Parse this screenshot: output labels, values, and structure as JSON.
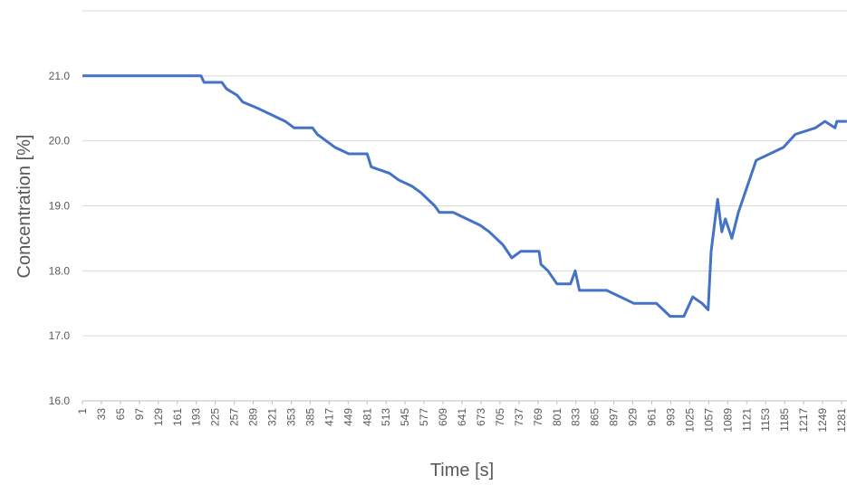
{
  "chart_data": {
    "type": "line",
    "x_label": "Time [s]",
    "y_label": "Concentration [%]",
    "x": [
      1,
      201,
      206,
      236,
      244,
      262,
      271,
      297,
      320,
      343,
      358,
      389,
      397,
      412,
      427,
      450,
      481,
      488,
      519,
      534,
      557,
      572,
      595,
      603,
      626,
      649,
      672,
      687,
      710,
      725,
      740,
      771,
      774,
      786,
      801,
      824,
      832,
      839,
      885,
      931,
      969,
      992,
      1015,
      1030,
      1046,
      1056,
      1061,
      1072,
      1079,
      1085,
      1096,
      1107,
      1122,
      1137,
      1160,
      1183,
      1203,
      1237,
      1253,
      1270,
      1273,
      1290
    ],
    "series": [
      {
        "name": "Concentration",
        "color": "#4472c4",
        "values": [
          21.0,
          21.0,
          20.9,
          20.9,
          20.8,
          20.7,
          20.6,
          20.5,
          20.4,
          20.3,
          20.2,
          20.2,
          20.1,
          20.0,
          19.9,
          19.8,
          19.8,
          19.6,
          19.5,
          19.4,
          19.3,
          19.2,
          19.0,
          18.9,
          18.9,
          18.8,
          18.7,
          18.6,
          18.4,
          18.2,
          18.3,
          18.3,
          18.1,
          18.0,
          17.8,
          17.8,
          18.0,
          17.7,
          17.7,
          17.5,
          17.5,
          17.3,
          17.3,
          17.6,
          17.5,
          17.4,
          18.3,
          19.1,
          18.6,
          18.8,
          18.5,
          18.9,
          19.3,
          19.7,
          19.8,
          19.9,
          20.1,
          20.2,
          20.3,
          20.2,
          20.3,
          20.3
        ]
      }
    ],
    "xlim": [
      1,
      1290
    ],
    "xticks": [
      1,
      33,
      65,
      97,
      129,
      161,
      193,
      225,
      257,
      289,
      321,
      353,
      385,
      417,
      449,
      481,
      513,
      545,
      577,
      609,
      641,
      673,
      705,
      737,
      769,
      801,
      833,
      865,
      897,
      929,
      961,
      993,
      1025,
      1057,
      1089,
      1121,
      1153,
      1185,
      1217,
      1249,
      1281
    ],
    "ylim": [
      16,
      22
    ],
    "yticks": [
      {
        "value": 16,
        "label": "16.0"
      },
      {
        "value": 17,
        "label": "17.0"
      },
      {
        "value": 18,
        "label": "18.0"
      },
      {
        "value": 19,
        "label": "19.0"
      },
      {
        "value": 20,
        "label": "20.0"
      },
      {
        "value": 21,
        "label": "21.0"
      }
    ],
    "grid": true
  }
}
